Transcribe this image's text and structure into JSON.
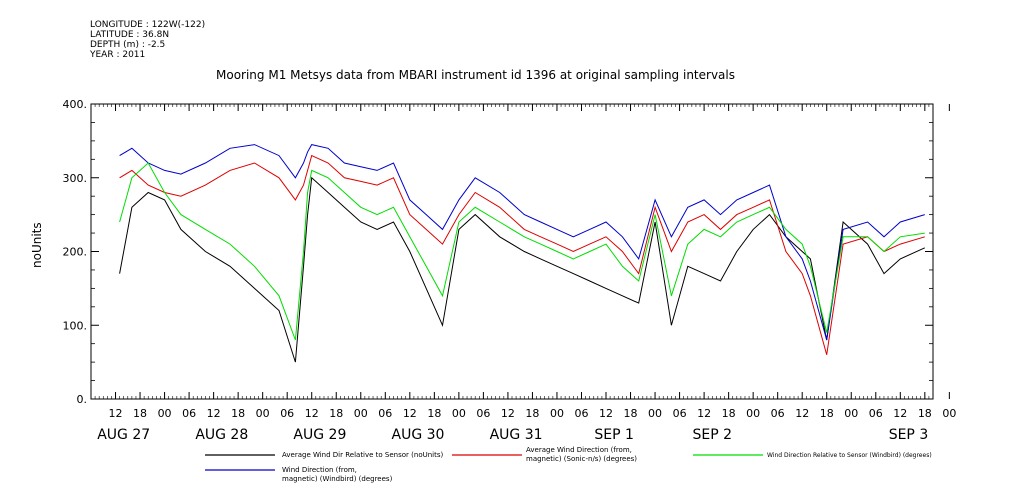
{
  "meta": {
    "longitude": "LONGITUDE : 122W(-122)",
    "latitude": "LATITUDE : 36.8N",
    "depth": "DEPTH (m) : -2.5",
    "year": "YEAR : 2011"
  },
  "chart_data": {
    "type": "line",
    "title": "Mooring M1 Metsys data from MBARI instrument id 1396 at original sampling intervals",
    "xlabel": "",
    "ylabel": "noUnits",
    "ylim": [
      0,
      400
    ],
    "y_ticks": [
      "0.",
      "100.",
      "200.",
      "300.",
      "400."
    ],
    "x_hour_ticks": [
      "12",
      "18",
      "00",
      "06",
      "12",
      "18",
      "00",
      "06",
      "12",
      "18",
      "00",
      "06",
      "12",
      "18",
      "00",
      "06",
      "12",
      "18",
      "00",
      "06",
      "12",
      "18",
      "00",
      "06",
      "12",
      "18",
      "00",
      "06",
      "12",
      "18",
      "00",
      "06",
      "12",
      "18",
      "00"
    ],
    "x_date_labels": [
      "AUG 27",
      "AUG 28",
      "AUG 29",
      "AUG 30",
      "AUG 31",
      "SEP  1",
      "SEP  2",
      "SEP  3"
    ],
    "colors": {
      "black": "#000000",
      "red": "#dd0000",
      "green": "#00dd00",
      "blue": "#0000cc"
    },
    "series": [
      {
        "name": "Average Wind Dir Relative to Sensor (noUnits)",
        "color": "#000000",
        "x": [
          7,
          10,
          14,
          18,
          22,
          28,
          34,
          40,
          46,
          50,
          52,
          53,
          54,
          58,
          62,
          66,
          70,
          74,
          78,
          82,
          86,
          90,
          94,
          100,
          106,
          110,
          114,
          118,
          122,
          126,
          130,
          134,
          138,
          142,
          146,
          150,
          154,
          158,
          162,
          166,
          170,
          174,
          176,
          180,
          184,
          190,
          194,
          198,
          204
        ],
        "values": [
          170,
          260,
          280,
          270,
          230,
          200,
          180,
          150,
          120,
          50,
          180,
          250,
          300,
          280,
          260,
          240,
          230,
          240,
          200,
          150,
          100,
          230,
          250,
          220,
          200,
          190,
          180,
          170,
          160,
          150,
          140,
          130,
          240,
          100,
          180,
          170,
          160,
          200,
          230,
          250,
          220,
          200,
          190,
          80,
          240,
          210,
          170,
          190,
          205
        ]
      },
      {
        "name": "Average Wind Direction (from, magnetic) (Sonic-n/s) (degrees)",
        "color": "#dd0000",
        "x": [
          7,
          10,
          14,
          18,
          22,
          28,
          34,
          40,
          46,
          50,
          52,
          53,
          54,
          58,
          62,
          66,
          70,
          74,
          78,
          82,
          86,
          90,
          94,
          100,
          106,
          110,
          114,
          118,
          122,
          126,
          130,
          134,
          138,
          142,
          146,
          150,
          154,
          158,
          162,
          166,
          170,
          174,
          176,
          180,
          184,
          190,
          194,
          198,
          204
        ],
        "values": [
          300,
          310,
          290,
          280,
          275,
          290,
          310,
          320,
          300,
          270,
          290,
          310,
          330,
          320,
          300,
          295,
          290,
          300,
          250,
          230,
          210,
          250,
          280,
          260,
          230,
          220,
          210,
          200,
          210,
          220,
          200,
          170,
          260,
          200,
          240,
          250,
          230,
          250,
          260,
          270,
          200,
          170,
          140,
          60,
          210,
          220,
          200,
          210,
          220
        ]
      },
      {
        "name": "Wind Direction Relative to Sensor (Windbird) (degrees)",
        "color": "#00dd00",
        "x": [
          7,
          10,
          14,
          18,
          22,
          28,
          34,
          40,
          46,
          50,
          52,
          53,
          54,
          58,
          62,
          66,
          70,
          74,
          78,
          82,
          86,
          90,
          94,
          100,
          106,
          110,
          114,
          118,
          122,
          126,
          130,
          134,
          138,
          142,
          146,
          150,
          154,
          158,
          162,
          166,
          170,
          174,
          176,
          180,
          184,
          190,
          194,
          198,
          204
        ],
        "values": [
          240,
          300,
          320,
          280,
          250,
          230,
          210,
          180,
          140,
          80,
          200,
          280,
          310,
          300,
          280,
          260,
          250,
          260,
          220,
          180,
          140,
          240,
          260,
          240,
          220,
          210,
          200,
          190,
          200,
          210,
          180,
          160,
          250,
          140,
          210,
          230,
          220,
          240,
          250,
          260,
          230,
          210,
          180,
          90,
          220,
          220,
          200,
          220,
          225
        ]
      },
      {
        "name": "Wind Direction (from, magnetic) (Windbird) (degrees)",
        "color": "#0000cc",
        "x": [
          7,
          10,
          14,
          18,
          22,
          28,
          34,
          40,
          46,
          50,
          52,
          53,
          54,
          58,
          62,
          66,
          70,
          74,
          78,
          82,
          86,
          90,
          94,
          100,
          106,
          110,
          114,
          118,
          122,
          126,
          130,
          134,
          138,
          142,
          146,
          150,
          154,
          158,
          162,
          166,
          170,
          174,
          176,
          180,
          184,
          190,
          194,
          198,
          204
        ],
        "values": [
          330,
          340,
          320,
          310,
          305,
          320,
          340,
          345,
          330,
          300,
          320,
          335,
          345,
          340,
          320,
          315,
          310,
          320,
          270,
          250,
          230,
          270,
          300,
          280,
          250,
          240,
          230,
          220,
          230,
          240,
          220,
          190,
          270,
          220,
          260,
          270,
          250,
          270,
          280,
          290,
          220,
          190,
          160,
          80,
          230,
          240,
          220,
          240,
          250
        ]
      }
    ]
  },
  "legend": {
    "black": "Average Wind Dir Relative to Sensor (noUnits)",
    "red_1": "Average Wind Direction (from,",
    "red_2": "magnetic) (Sonic-n/s) (degrees)",
    "green": "Wind Direction Relative to Sensor (Windbird) (degrees)",
    "blue_1": "Wind Direction (from,",
    "blue_2": "magnetic) (Windbird) (degrees)"
  }
}
